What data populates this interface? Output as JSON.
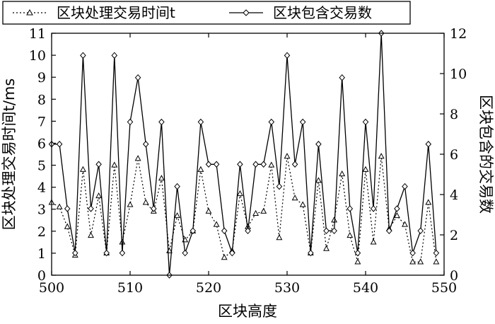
{
  "chart_data": {
    "type": "line",
    "xlabel": "区块高度",
    "ylabel_left": "区块处理交易时间t/ms",
    "ylabel_right": "区块包含的交易数",
    "x_range": [
      500,
      550
    ],
    "x_ticks": [
      "500",
      "510",
      "520",
      "530",
      "540",
      "550"
    ],
    "left_range": [
      0,
      11
    ],
    "left_ticks": [
      "0",
      "1",
      "2",
      "3",
      "4",
      "5",
      "6",
      "7",
      "8",
      "9",
      "10",
      "11"
    ],
    "right_range": [
      0,
      12
    ],
    "right_ticks": [
      "0",
      "2",
      "4",
      "6",
      "8",
      "10",
      "12"
    ],
    "legend": {
      "placement": "top",
      "items": [
        "区块处理交易时间t",
        "区块包含交易数"
      ]
    },
    "x": [
      500,
      501,
      502,
      503,
      504,
      505,
      506,
      507,
      508,
      509,
      510,
      511,
      512,
      513,
      514,
      515,
      516,
      517,
      518,
      519,
      520,
      521,
      522,
      523,
      524,
      525,
      526,
      527,
      528,
      529,
      530,
      531,
      532,
      533,
      534,
      535,
      536,
      537,
      538,
      539,
      540,
      541,
      542,
      543,
      544,
      545,
      546,
      547,
      548,
      549
    ],
    "series": [
      {
        "name": "区块处理交易时间t",
        "axis": "left",
        "style": "dotted",
        "marker": "triangle",
        "values": [
          3.3,
          3.1,
          2.2,
          0.9,
          4.8,
          1.8,
          3.6,
          1.0,
          5.0,
          1.5,
          3.2,
          5.3,
          3.3,
          2.9,
          4.4,
          1.1,
          2.7,
          1.6,
          2.0,
          4.8,
          2.9,
          2.3,
          0.8,
          1.1,
          3.7,
          2.2,
          2.8,
          2.9,
          5.0,
          1.7,
          5.4,
          3.5,
          3.2,
          1.0,
          4.3,
          1.2,
          2.5,
          4.6,
          1.8,
          0.6,
          4.8,
          1.5,
          5.4,
          2.1,
          2.7,
          2.3,
          0.6,
          0.6,
          3.3,
          0.6
        ]
      },
      {
        "name": "区块包含交易数",
        "axis": "right",
        "style": "solid",
        "marker": "diamond",
        "values": [
          6.5,
          6.5,
          3.3,
          1.1,
          10.9,
          3.3,
          5.5,
          1.1,
          10.9,
          1.1,
          7.6,
          9.8,
          6.5,
          3.3,
          7.6,
          0,
          4.4,
          1.1,
          2.2,
          7.6,
          5.5,
          5.5,
          2.2,
          1.1,
          5.5,
          2.2,
          5.5,
          5.5,
          7.6,
          4.4,
          10.9,
          5.5,
          7.6,
          1.1,
          6.5,
          2.2,
          2.2,
          9.8,
          3.3,
          1.1,
          7.6,
          3.3,
          12,
          2.2,
          3.3,
          4.4,
          1.1,
          2.2,
          6.5,
          1.1
        ]
      }
    ]
  }
}
